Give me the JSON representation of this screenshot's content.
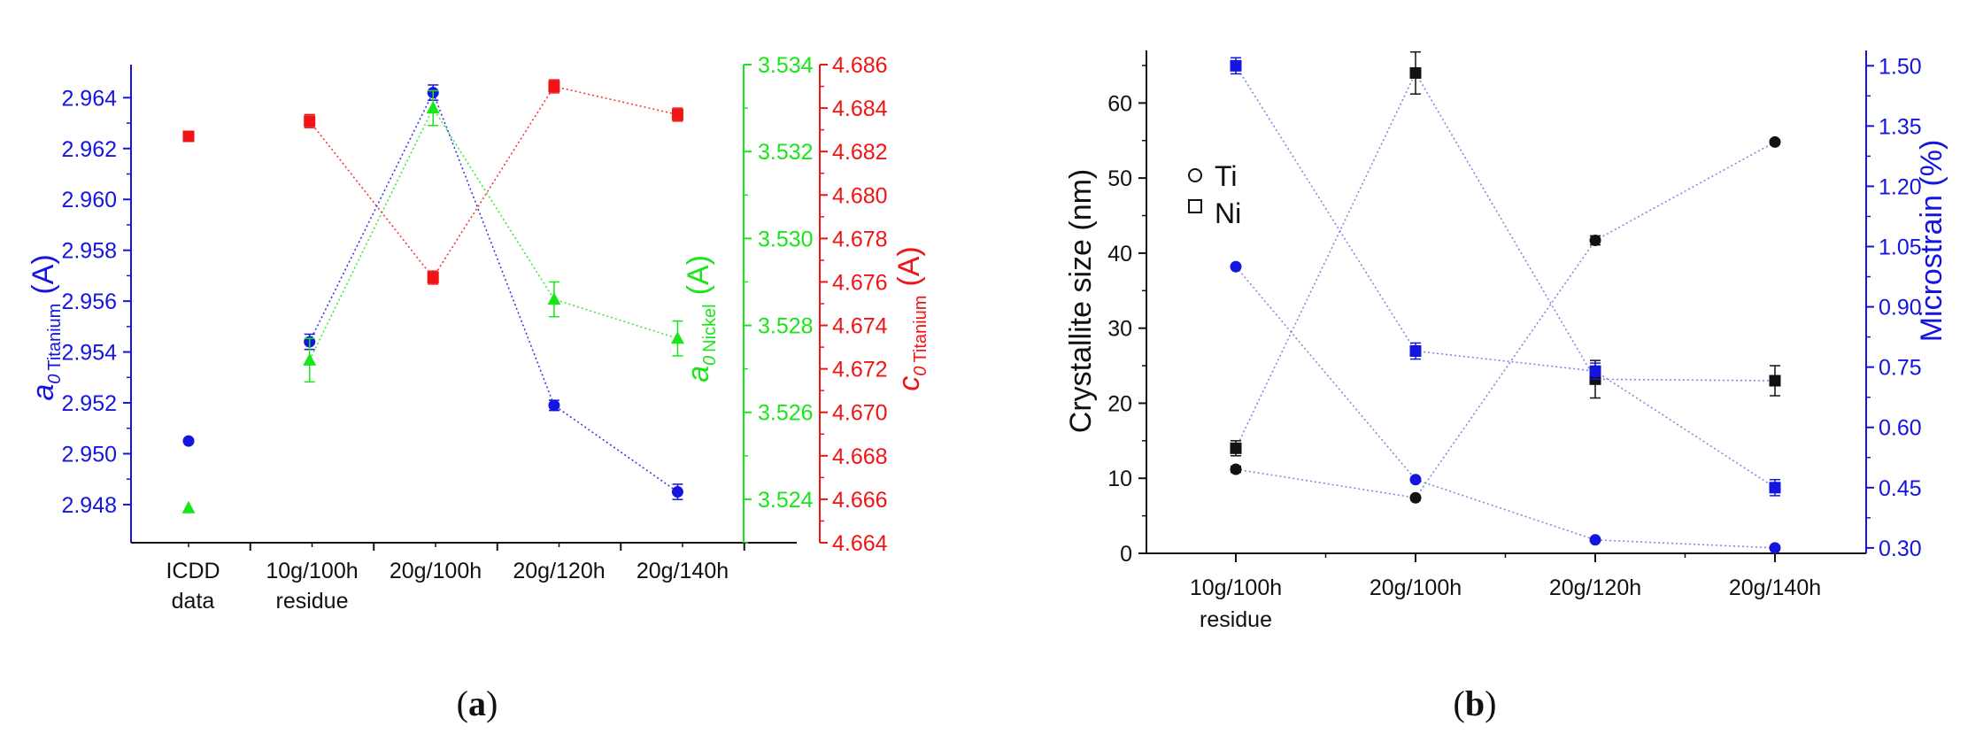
{
  "colors": {
    "blue": "#1515e0",
    "green": "#19e619",
    "red": "#f01414",
    "black": "#111111",
    "connector_a": "#8a8ae0",
    "connector_b": "#7a7ad8"
  },
  "chart_data": [
    {
      "id": "a",
      "type": "scatter",
      "caption": "(a)",
      "categories": [
        "ICDD data",
        "10g/100h residue",
        "20g/100h",
        "20g/120h",
        "20g/140h"
      ],
      "category_lines": [
        [
          "ICDD",
          "data"
        ],
        [
          "10g/100h",
          "residue"
        ],
        [
          "20g/100h"
        ],
        [
          "20g/120h"
        ],
        [
          "20g/140h"
        ]
      ],
      "left_axis": {
        "label_main": "a",
        "label_sub0": "0",
        "label_subname": "Titanium",
        "label_unit": "(A)",
        "ylim": [
          2.9465,
          2.9653
        ],
        "ticks": [
          "2.948",
          "2.950",
          "2.952",
          "2.954",
          "2.956",
          "2.958",
          "2.960",
          "2.962",
          "2.964"
        ],
        "color": "#1515e0"
      },
      "right_axis_1": {
        "label_main": "a",
        "label_sub0": "0",
        "label_subname": "Nickel",
        "label_unit": "(A)",
        "ylim": [
          3.523,
          3.534
        ],
        "ticks": [
          "3.524",
          "3.526",
          "3.528",
          "3.530",
          "3.532",
          "3.534"
        ],
        "color": "#19e619"
      },
      "right_axis_2": {
        "label_main": "c",
        "label_sub0": "0",
        "label_subname": "Titanium",
        "label_unit": "(A)",
        "ylim": [
          4.664,
          4.686
        ],
        "ticks": [
          "4.664",
          "4.666",
          "4.668",
          "4.670",
          "4.672",
          "4.674",
          "4.676",
          "4.678",
          "4.680",
          "4.682",
          "4.684",
          "4.686"
        ],
        "color": "#f01414"
      },
      "series": [
        {
          "name": "a0 Titanium",
          "axis": "left",
          "marker": "circle",
          "color": "#1515e0",
          "points": [
            {
              "i": 0.0,
              "v": 2.9505,
              "err": 0,
              "line": false
            },
            {
              "i": 0.98,
              "v": 2.9544,
              "err": 0.0003,
              "line": true
            },
            {
              "i": 1.98,
              "v": 2.9642,
              "err": 0.0003,
              "line": true
            },
            {
              "i": 2.96,
              "v": 2.9519,
              "err": 0.0002,
              "line": true
            },
            {
              "i": 3.96,
              "v": 2.9485,
              "err": 0.0003,
              "line": true
            }
          ]
        },
        {
          "name": "a0 Nickel",
          "axis": "right1",
          "marker": "triangle",
          "color": "#19e619",
          "points": [
            {
              "i": 0.0,
              "v": 3.5238,
              "err": 0,
              "line": false
            },
            {
              "i": 0.98,
              "v": 3.5272,
              "err": 0.0005,
              "line": true
            },
            {
              "i": 1.98,
              "v": 3.533,
              "err": 0.0004,
              "line": true
            },
            {
              "i": 2.96,
              "v": 3.5286,
              "err": 0.0004,
              "line": true
            },
            {
              "i": 3.96,
              "v": 3.5277,
              "err": 0.0004,
              "line": true
            }
          ]
        },
        {
          "name": "c0 Titanium",
          "axis": "right2",
          "marker": "square",
          "color": "#f01414",
          "points": [
            {
              "i": 0.0,
              "v": 4.6827,
              "err": 0,
              "line": false
            },
            {
              "i": 0.98,
              "v": 4.6834,
              "err": 0.0003,
              "line": true
            },
            {
              "i": 1.98,
              "v": 4.6762,
              "err": 0.0003,
              "line": true
            },
            {
              "i": 2.96,
              "v": 4.685,
              "err": 0.0003,
              "line": true
            },
            {
              "i": 3.96,
              "v": 4.6837,
              "err": 0.0003,
              "line": true
            }
          ]
        }
      ]
    },
    {
      "id": "b",
      "type": "scatter",
      "caption": "(b)",
      "categories": [
        "10g/100h residue",
        "20g/100h",
        "20g/120h",
        "20g/140h"
      ],
      "category_lines": [
        [
          "10g/100h",
          "residue"
        ],
        [
          "20g/100h"
        ],
        [
          "20g/120h"
        ],
        [
          "20g/140h"
        ]
      ],
      "left_axis": {
        "label": "Crystallite size (nm)",
        "ylim": [
          0,
          67
        ],
        "ticks": [
          "0",
          "10",
          "20",
          "30",
          "40",
          "50",
          "60"
        ],
        "color": "#111111"
      },
      "right_axis": {
        "label": "Microstrain (%)",
        "ylim": [
          0.2865,
          1.5381
        ],
        "ticks": [
          "0.30",
          "0.45",
          "0.60",
          "0.75",
          "0.90",
          "1.05",
          "1.20",
          "1.35",
          "1.50"
        ],
        "color": "#1515e0"
      },
      "legend": [
        {
          "label": "Ti",
          "marker": "open-circle"
        },
        {
          "label": "Ni",
          "marker": "open-square"
        }
      ],
      "series": [
        {
          "name": "Ti crystallite size",
          "axis": "left",
          "marker": "circle",
          "color": "#111111",
          "values": [
            11.2,
            7.4,
            41.7,
            54.8
          ],
          "errors": [
            0.4,
            0.3,
            0.6,
            0.3
          ]
        },
        {
          "name": "Ni crystallite size",
          "axis": "left",
          "marker": "square",
          "color": "#111111",
          "values": [
            14.0,
            64.0,
            23.2,
            23.0
          ],
          "errors": [
            1.0,
            2.8,
            2.5,
            2.0
          ]
        },
        {
          "name": "Ti microstrain",
          "axis": "right",
          "marker": "circle",
          "color": "#1515e0",
          "values": [
            1.0,
            0.47,
            0.32,
            0.3
          ],
          "errors": [
            0,
            0,
            0,
            0
          ]
        },
        {
          "name": "Ni microstrain",
          "axis": "right",
          "marker": "square",
          "color": "#1515e0",
          "values": [
            1.5,
            0.79,
            0.74,
            0.45
          ],
          "errors": [
            0.02,
            0.02,
            0.02,
            0.02
          ]
        }
      ]
    }
  ]
}
